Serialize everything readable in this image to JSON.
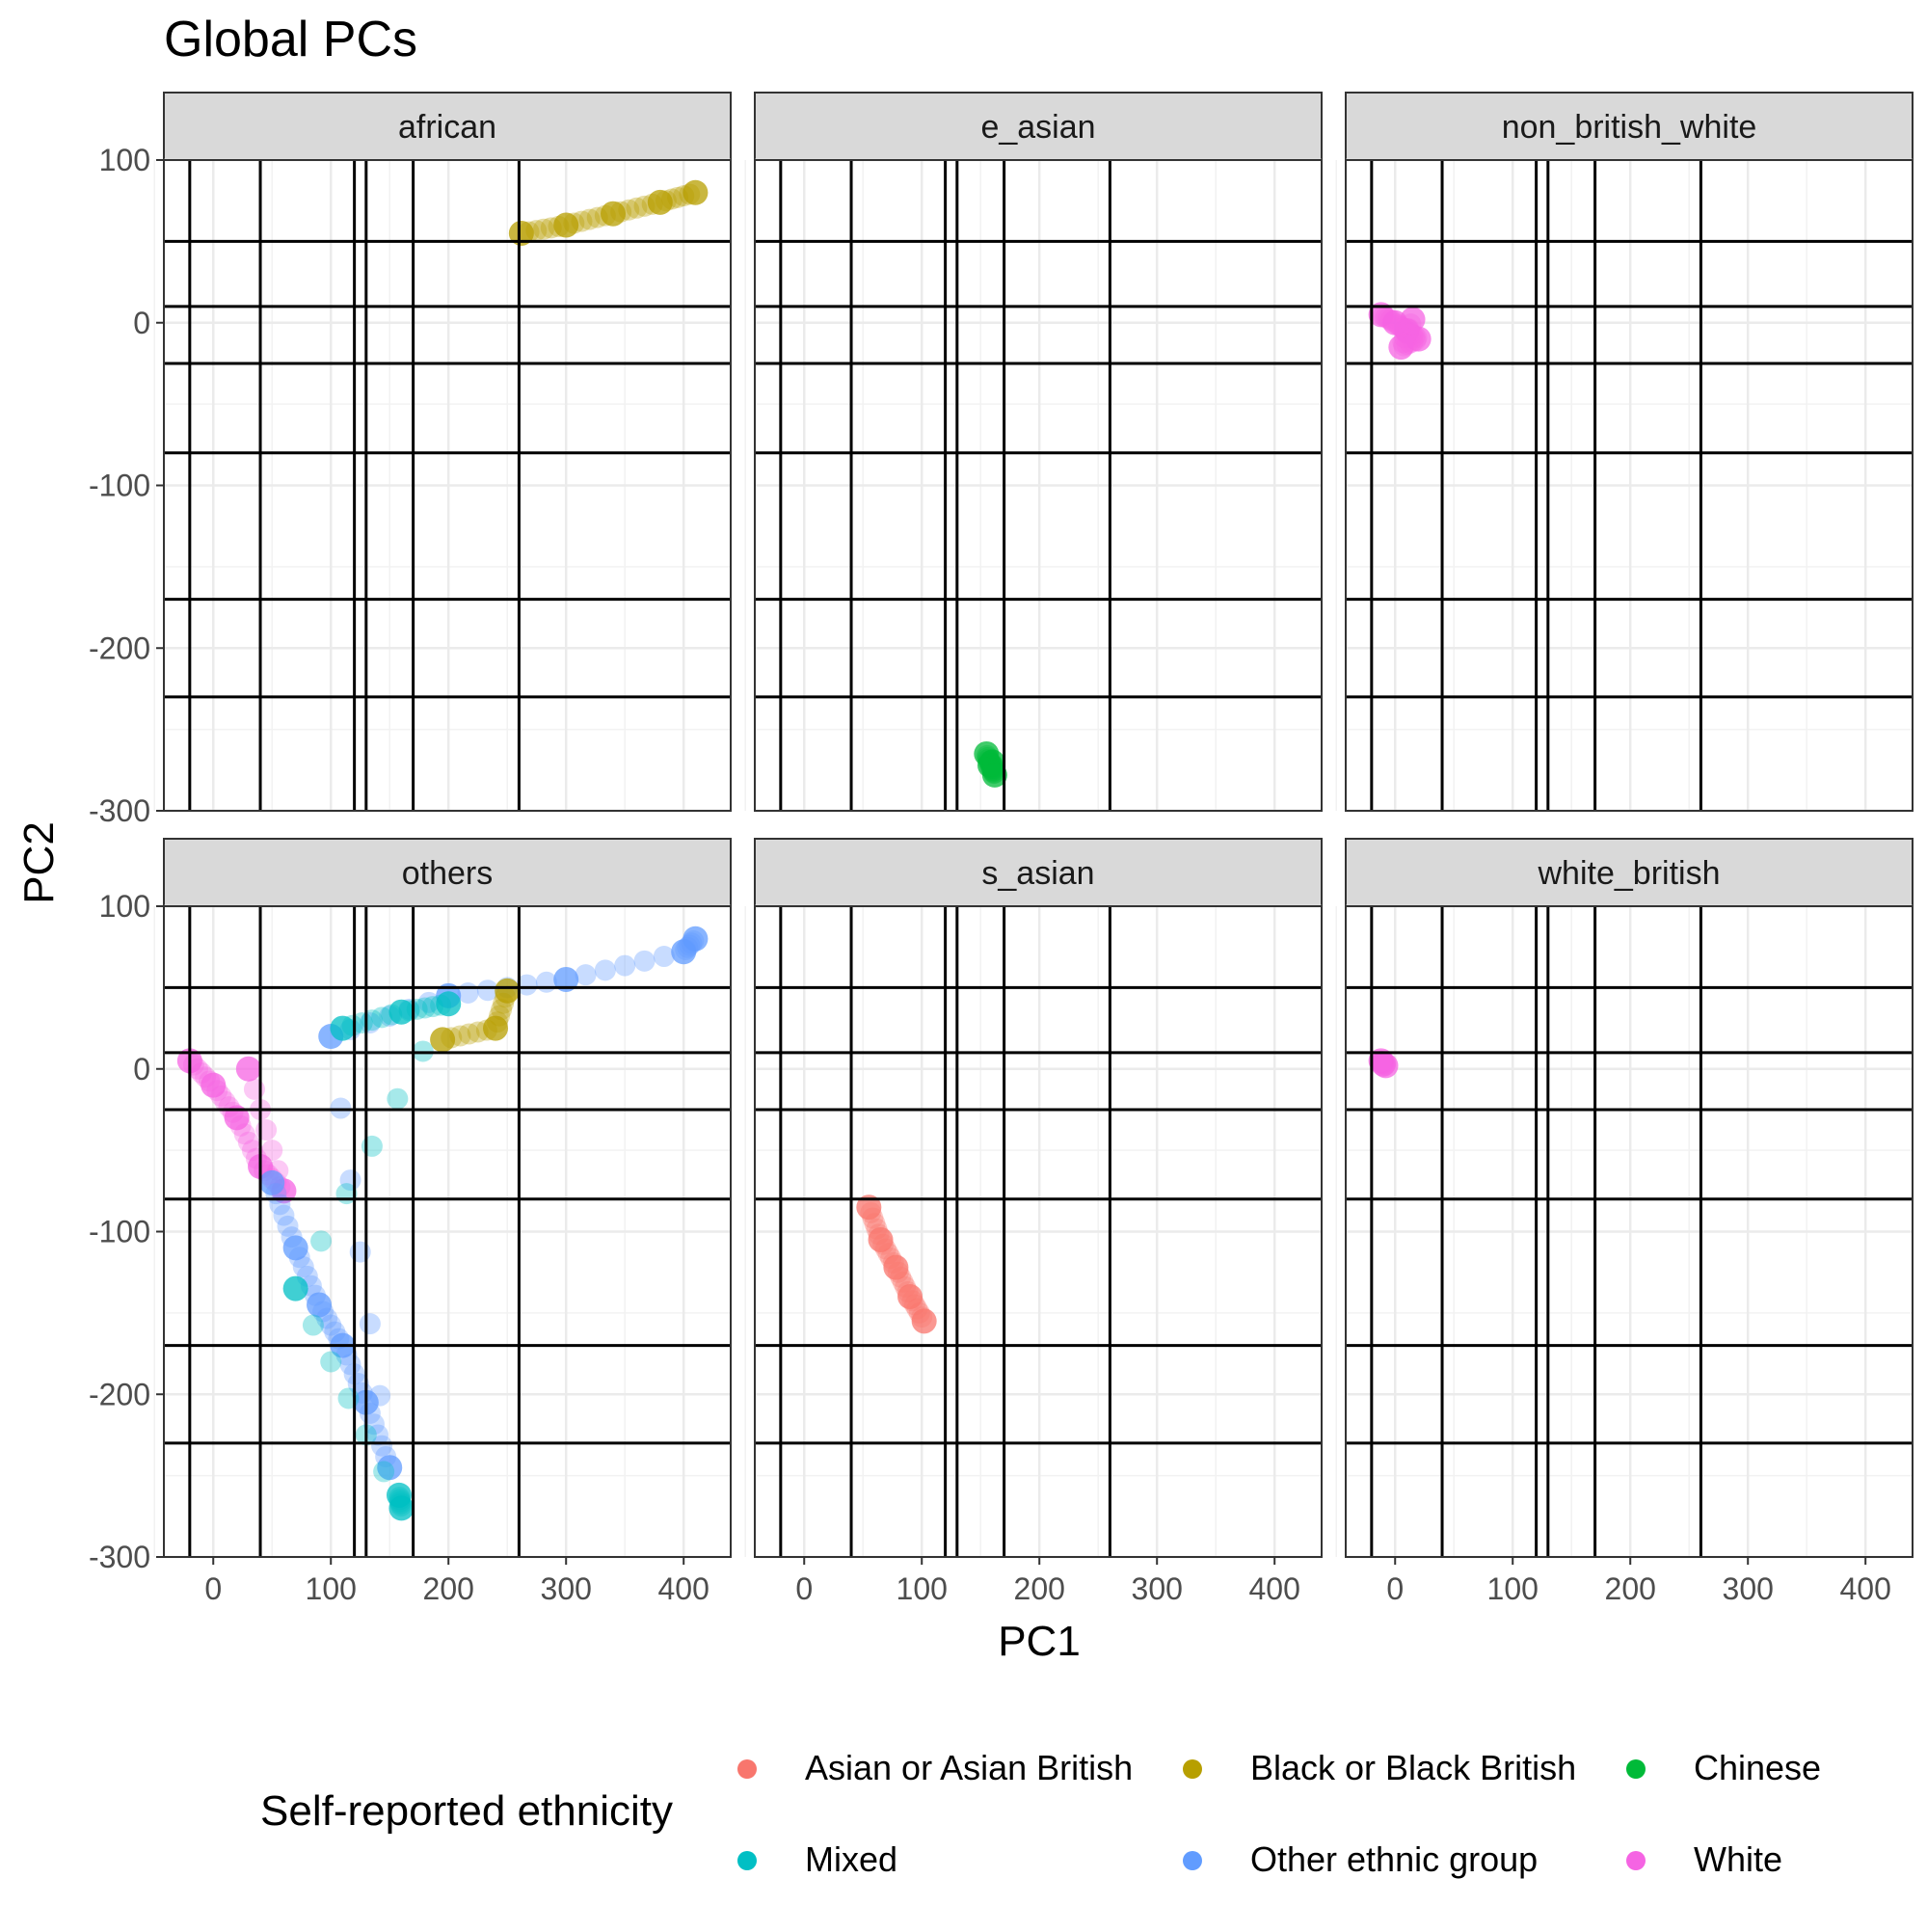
{
  "chart_data": {
    "type": "scatter",
    "title": "Global PCs",
    "xlabel": "PC1",
    "ylabel": "PC2",
    "xlim": [
      -42,
      440
    ],
    "ylim": [
      -300,
      100
    ],
    "x_ticks": [
      0,
      100,
      200,
      300,
      400
    ],
    "y_ticks": [
      100,
      0,
      -100,
      -200,
      -300
    ],
    "x_tick_labels": [
      "0",
      "100",
      "200",
      "300",
      "400"
    ],
    "y_tick_labels": [
      "100",
      "0",
      "-100",
      "-200",
      "-300"
    ],
    "grid": true,
    "facet_layout": "2 rows x 3 columns, shared axes",
    "reference_lines": {
      "vertical_x": [
        -20,
        40,
        120,
        130,
        170,
        260
      ],
      "horizontal_y": [
        50,
        10,
        -25,
        -80,
        -170,
        -230
      ]
    },
    "legend": {
      "title": "Self-reported ethnicity",
      "position": "bottom",
      "entries": [
        {
          "label": "Asian or Asian British",
          "color": "#F8766D"
        },
        {
          "label": "Black or Black British",
          "color": "#B79F00"
        },
        {
          "label": "Chinese",
          "color": "#00BA38"
        },
        {
          "label": "Mixed",
          "color": "#00BFC4"
        },
        {
          "label": "Other ethnic group",
          "color": "#619CFF"
        },
        {
          "label": "White",
          "color": "#F564E3"
        }
      ]
    },
    "panels": [
      {
        "strip": "african",
        "clusters": [
          {
            "group": "Black or Black British",
            "points": [
              [
                262,
                55
              ],
              [
                300,
                60
              ],
              [
                340,
                67
              ],
              [
                380,
                74
              ],
              [
                410,
                80
              ]
            ]
          }
        ]
      },
      {
        "strip": "e_asian",
        "clusters": [
          {
            "group": "Chinese",
            "points": [
              [
                155,
                -265
              ],
              [
                158,
                -272
              ],
              [
                162,
                -278
              ],
              [
                160,
                -270
              ]
            ]
          }
        ]
      },
      {
        "strip": "non_british_white",
        "clusters": [
          {
            "group": "White",
            "points": [
              [
                -12,
                5
              ],
              [
                0,
                0
              ],
              [
                10,
                -5
              ],
              [
                20,
                -10
              ],
              [
                5,
                -15
              ],
              [
                15,
                2
              ]
            ]
          }
        ]
      },
      {
        "strip": "others",
        "clusters": [
          {
            "group": "White",
            "points": [
              [
                -20,
                5
              ],
              [
                0,
                -10
              ],
              [
                20,
                -30
              ],
              [
                40,
                -60
              ],
              [
                60,
                -75
              ],
              [
                30,
                0
              ]
            ]
          },
          {
            "group": "Other ethnic group",
            "points": [
              [
                50,
                -70
              ],
              [
                70,
                -110
              ],
              [
                90,
                -145
              ],
              [
                110,
                -170
              ],
              [
                130,
                -205
              ],
              [
                150,
                -245
              ],
              [
                100,
                20
              ],
              [
                200,
                45
              ],
              [
                300,
                55
              ],
              [
                400,
                72
              ],
              [
                410,
                80
              ]
            ]
          },
          {
            "group": "Mixed",
            "points": [
              [
                110,
                25
              ],
              [
                160,
                35
              ],
              [
                200,
                40
              ],
              [
                70,
                -135
              ],
              [
                160,
                -270
              ],
              [
                158,
                -262
              ]
            ]
          },
          {
            "group": "Black or Black British",
            "points": [
              [
                195,
                18
              ],
              [
                240,
                25
              ],
              [
                250,
                48
              ]
            ]
          }
        ]
      },
      {
        "strip": "s_asian",
        "clusters": [
          {
            "group": "Asian or Asian British",
            "points": [
              [
                55,
                -85
              ],
              [
                65,
                -105
              ],
              [
                78,
                -122
              ],
              [
                90,
                -140
              ],
              [
                102,
                -155
              ]
            ]
          }
        ]
      },
      {
        "strip": "white_british",
        "clusters": [
          {
            "group": "White",
            "points": [
              [
                -10,
                3
              ],
              [
                -12,
                5
              ],
              [
                -8,
                2
              ]
            ]
          }
        ]
      }
    ]
  }
}
